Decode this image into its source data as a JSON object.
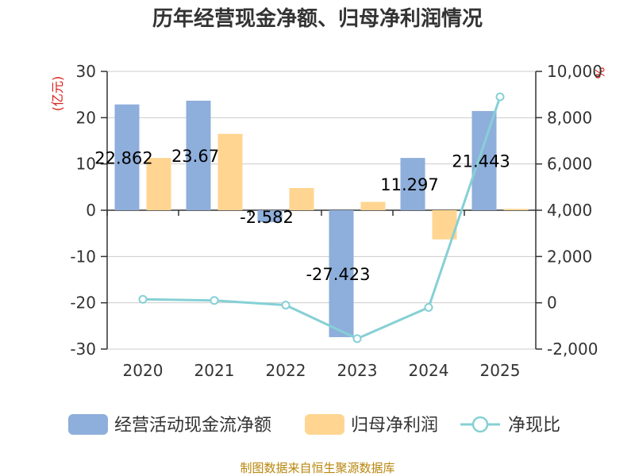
{
  "chart_data": {
    "type": "bar",
    "title": "历年经营现金净额、归母净利润情况",
    "categories": [
      "2020",
      "2021",
      "2022",
      "2023",
      "2024",
      "2025"
    ],
    "left_axis": {
      "unit": "(亿元)",
      "ylim": [
        -30,
        30
      ],
      "ticks": [
        "30",
        "20",
        "10",
        "0",
        "-10",
        "-20",
        "-30"
      ]
    },
    "right_axis": {
      "unit": "%",
      "ylim": [
        -2000,
        10000
      ],
      "ticks": [
        "10,000",
        "8,000",
        "6,000",
        "4,000",
        "2,000",
        "0",
        "-2,000"
      ]
    },
    "series": [
      {
        "name": "经营活动现金流净额",
        "kind": "bar",
        "axis": "left",
        "color": "#8eaedb",
        "values": [
          22.862,
          23.67,
          -2.582,
          -27.423,
          11.297,
          21.443
        ],
        "labels": [
          "22.862",
          "23.67",
          "-2.582",
          "-27.423",
          "11.297",
          "21.443"
        ]
      },
      {
        "name": "归母净利润",
        "kind": "bar",
        "axis": "left",
        "color": "#ffd591",
        "values": [
          11.3,
          16.5,
          4.8,
          1.8,
          -6.3,
          0.3
        ]
      },
      {
        "name": "净现比",
        "kind": "line",
        "axis": "right",
        "color": "#86d0d5",
        "values": [
          150,
          100,
          -100,
          -1550,
          -200,
          8900
        ]
      }
    ],
    "grid": true,
    "legend_position": "bottom"
  },
  "source": "制图数据来自恒生聚源数据库"
}
